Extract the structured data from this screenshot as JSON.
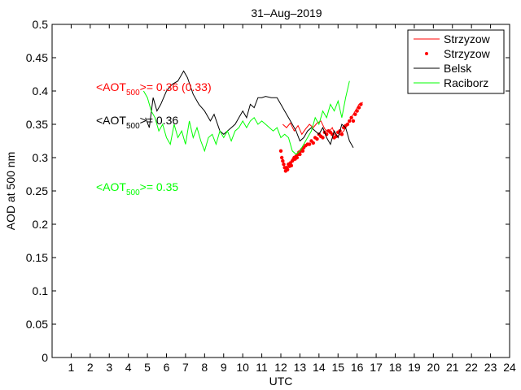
{
  "chart_data": {
    "type": "line",
    "title": "31–Aug–2019",
    "xlabel": "UTC",
    "ylabel": "AOD at 500 nm",
    "xlim": [
      0,
      24
    ],
    "ylim": [
      0,
      0.5
    ],
    "x_ticks": [
      1,
      2,
      3,
      4,
      5,
      6,
      7,
      8,
      9,
      10,
      11,
      12,
      13,
      14,
      15,
      16,
      17,
      18,
      19,
      20,
      21,
      22,
      23,
      24
    ],
    "y_ticks": [
      0,
      0.05,
      0.1,
      0.15,
      0.2,
      0.25,
      0.3,
      0.35,
      0.4,
      0.45,
      0.5
    ],
    "y_tick_labels": [
      "0",
      "0.05",
      "0.1",
      "0.15",
      "0.2",
      "0.25",
      "0.3",
      "0.35",
      "0.4",
      "0.45",
      "0.5"
    ],
    "grid": false,
    "legend_position": "top-right",
    "series": [
      {
        "name": "Strzyzow",
        "style": "line",
        "color": "#ff0000",
        "x": [
          12.1,
          12.3,
          12.5,
          12.7,
          12.9,
          13.1,
          13.3,
          13.5,
          13.7,
          13.9,
          14.1,
          14.3,
          14.5,
          14.7,
          14.9,
          15.1,
          15.3,
          15.5,
          15.7,
          15.9,
          16.1,
          16.3
        ],
        "y": [
          0.35,
          0.345,
          0.352,
          0.34,
          0.348,
          0.335,
          0.343,
          0.35,
          0.345,
          0.352,
          0.355,
          0.343,
          0.338,
          0.345,
          0.33,
          0.335,
          0.34,
          0.35,
          0.36,
          0.37,
          0.38,
          0.383
        ]
      },
      {
        "name": "Strzyzow",
        "style": "points",
        "color": "#ff0000",
        "x": [
          12.0,
          12.05,
          12.1,
          12.15,
          12.2,
          12.25,
          12.3,
          12.35,
          12.4,
          12.45,
          12.5,
          12.55,
          12.6,
          12.65,
          12.7,
          12.75,
          12.8,
          12.85,
          12.9,
          12.95,
          13.0,
          13.05,
          13.1,
          13.15,
          13.2,
          13.3,
          13.4,
          13.5,
          13.6,
          13.7,
          13.8,
          13.9,
          14.0,
          14.1,
          14.2,
          14.3,
          14.4,
          14.5,
          14.6,
          14.7,
          14.8,
          14.9,
          15.0,
          15.1,
          15.2,
          15.3,
          15.4,
          15.5,
          15.6,
          15.7,
          15.8,
          15.9,
          16.0,
          16.1,
          16.2
        ],
        "y": [
          0.31,
          0.3,
          0.295,
          0.29,
          0.285,
          0.28,
          0.285,
          0.282,
          0.29,
          0.287,
          0.292,
          0.288,
          0.295,
          0.297,
          0.3,
          0.298,
          0.302,
          0.3,
          0.305,
          0.308,
          0.305,
          0.31,
          0.312,
          0.31,
          0.315,
          0.318,
          0.32,
          0.32,
          0.325,
          0.322,
          0.33,
          0.328,
          0.335,
          0.332,
          0.33,
          0.338,
          0.335,
          0.34,
          0.338,
          0.335,
          0.33,
          0.332,
          0.338,
          0.34,
          0.335,
          0.345,
          0.348,
          0.35,
          0.355,
          0.36,
          0.355,
          0.365,
          0.37,
          0.375,
          0.38
        ]
      },
      {
        "name": "Belsk",
        "style": "line",
        "color": "#000000",
        "x": [
          4.9,
          5.1,
          5.3,
          5.5,
          5.7,
          6.0,
          6.3,
          6.6,
          6.9,
          7.1,
          7.4,
          7.7,
          8.0,
          8.3,
          8.5,
          8.8,
          9.0,
          9.2,
          9.4,
          9.6,
          9.8,
          10.0,
          10.2,
          10.4,
          10.6,
          10.8,
          11.0,
          11.2,
          11.5,
          11.8,
          12.0,
          12.2,
          12.4,
          12.6,
          12.8,
          13.0,
          13.2,
          13.4,
          13.6,
          13.8,
          14.0,
          14.2,
          14.4,
          14.6,
          14.8,
          15.0,
          15.2,
          15.4,
          15.6,
          15.8
        ],
        "y": [
          0.36,
          0.345,
          0.39,
          0.37,
          0.38,
          0.4,
          0.41,
          0.415,
          0.43,
          0.42,
          0.395,
          0.38,
          0.37,
          0.355,
          0.365,
          0.34,
          0.335,
          0.34,
          0.345,
          0.35,
          0.36,
          0.37,
          0.36,
          0.38,
          0.375,
          0.39,
          0.39,
          0.392,
          0.39,
          0.39,
          0.38,
          0.37,
          0.36,
          0.35,
          0.34,
          0.325,
          0.33,
          0.34,
          0.345,
          0.34,
          0.335,
          0.345,
          0.33,
          0.32,
          0.34,
          0.33,
          0.35,
          0.345,
          0.325,
          0.315
        ]
      },
      {
        "name": "Raciborz",
        "style": "line",
        "color": "#00ff00",
        "x": [
          4.8,
          5.0,
          5.2,
          5.4,
          5.6,
          5.8,
          6.0,
          6.2,
          6.4,
          6.6,
          6.8,
          7.0,
          7.2,
          7.4,
          7.6,
          7.8,
          8.0,
          8.2,
          8.4,
          8.6,
          8.8,
          9.0,
          9.2,
          9.4,
          9.6,
          9.8,
          10.0,
          10.2,
          10.4,
          10.6,
          10.8,
          11.0,
          11.2,
          11.4,
          11.6,
          11.8,
          12.0,
          12.2,
          12.4,
          12.6,
          12.8,
          13.0,
          13.2,
          13.4,
          13.6,
          13.8,
          14.0,
          14.2,
          14.4,
          14.6,
          14.8,
          15.0,
          15.2,
          15.4,
          15.6
        ],
        "y": [
          0.4,
          0.39,
          0.37,
          0.36,
          0.34,
          0.35,
          0.33,
          0.32,
          0.35,
          0.33,
          0.34,
          0.32,
          0.355,
          0.33,
          0.345,
          0.325,
          0.31,
          0.33,
          0.335,
          0.32,
          0.34,
          0.33,
          0.34,
          0.325,
          0.34,
          0.345,
          0.355,
          0.345,
          0.355,
          0.36,
          0.35,
          0.355,
          0.35,
          0.345,
          0.34,
          0.345,
          0.33,
          0.335,
          0.33,
          0.31,
          0.305,
          0.31,
          0.32,
          0.33,
          0.34,
          0.36,
          0.35,
          0.37,
          0.36,
          0.38,
          0.37,
          0.385,
          0.36,
          0.39,
          0.415
        ]
      }
    ],
    "annotations": [
      {
        "prefix": "<AOT",
        "sub": "500",
        "suffix": ">= 0.36 (0.33)",
        "color": "#ff0000"
      },
      {
        "prefix": "<AOT",
        "sub": "500",
        "suffix": ">= 0.36",
        "color": "#000000"
      },
      {
        "prefix": "<AOT",
        "sub": "500",
        "suffix": ">= 0.35",
        "color": "#00ff00"
      }
    ],
    "legend": [
      {
        "label": "Strzyzow",
        "color": "#ff0000",
        "style": "line"
      },
      {
        "label": "Strzyzow",
        "color": "#ff0000",
        "style": "points"
      },
      {
        "label": "Belsk",
        "color": "#000000",
        "style": "line"
      },
      {
        "label": "Raciborz",
        "color": "#00ff00",
        "style": "line"
      }
    ]
  }
}
